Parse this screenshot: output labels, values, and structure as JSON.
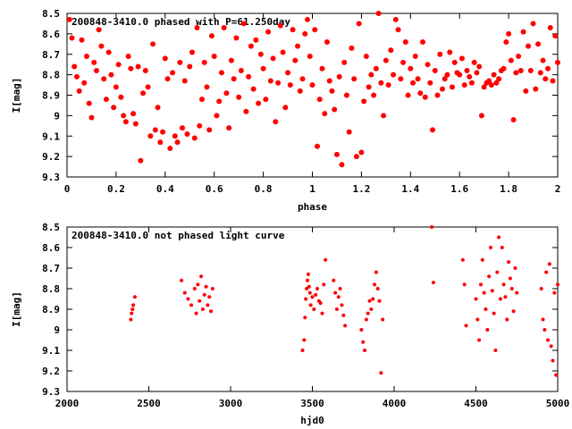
{
  "chart_data": [
    {
      "type": "scatter",
      "title": "200848-3410.0 phased with P=61.250day",
      "xlabel": "phase",
      "ylabel": "I[mag]",
      "xlim": [
        0,
        2
      ],
      "ylim": [
        9.3,
        8.5
      ],
      "y_inverted": true,
      "grid": false,
      "color": "#ff0000",
      "xticks": [
        0,
        0.2,
        0.4,
        0.6,
        0.8,
        1,
        1.2,
        1.4,
        1.6,
        1.8,
        2
      ],
      "xtick_labels": [
        "0",
        "0.2",
        "0.4",
        "0.6",
        "0.8",
        "1",
        "1.2",
        "1.4",
        "1.6",
        "1.8",
        "2"
      ],
      "yticks": [
        8.5,
        8.6,
        8.7,
        8.8,
        8.9,
        9,
        9.1,
        9.2,
        9.3
      ],
      "ytick_labels": [
        "8.5",
        "8.6",
        "8.7",
        "8.8",
        "8.9",
        "9",
        "9.1",
        "9.2",
        "9.3"
      ],
      "points": [
        [
          0.01,
          8.53
        ],
        [
          0.02,
          8.62
        ],
        [
          0.03,
          8.76
        ],
        [
          0.04,
          8.81
        ],
        [
          0.05,
          8.88
        ],
        [
          0.06,
          8.63
        ],
        [
          0.07,
          8.84
        ],
        [
          0.08,
          8.71
        ],
        [
          0.09,
          8.94
        ],
        [
          0.1,
          9.01
        ],
        [
          0.11,
          8.74
        ],
        [
          0.12,
          8.78
        ],
        [
          0.13,
          8.58
        ],
        [
          0.14,
          8.66
        ],
        [
          0.15,
          8.82
        ],
        [
          0.16,
          8.92
        ],
        [
          0.17,
          8.69
        ],
        [
          0.18,
          8.8
        ],
        [
          0.19,
          8.96
        ],
        [
          0.2,
          8.86
        ],
        [
          0.21,
          8.75
        ],
        [
          0.22,
          8.91
        ],
        [
          0.23,
          9.0
        ],
        [
          0.24,
          9.03
        ],
        [
          0.25,
          8.71
        ],
        [
          0.26,
          8.77
        ],
        [
          0.27,
          8.99
        ],
        [
          0.28,
          9.04
        ],
        [
          0.29,
          8.76
        ],
        [
          0.3,
          9.22
        ],
        [
          0.31,
          8.89
        ],
        [
          0.32,
          8.78
        ],
        [
          0.33,
          8.86
        ],
        [
          0.34,
          9.1
        ],
        [
          0.35,
          8.65
        ],
        [
          0.36,
          9.07
        ],
        [
          0.37,
          8.96
        ],
        [
          0.38,
          9.13
        ],
        [
          0.39,
          9.08
        ],
        [
          0.4,
          8.72
        ],
        [
          0.41,
          8.82
        ],
        [
          0.42,
          9.16
        ],
        [
          0.43,
          8.79
        ],
        [
          0.44,
          9.1
        ],
        [
          0.45,
          9.13
        ],
        [
          0.46,
          8.74
        ],
        [
          0.47,
          9.06
        ],
        [
          0.48,
          8.83
        ],
        [
          0.49,
          9.09
        ],
        [
          0.5,
          8.76
        ],
        [
          0.51,
          8.69
        ],
        [
          0.52,
          9.11
        ],
        [
          0.53,
          8.57
        ],
        [
          0.54,
          9.05
        ],
        [
          0.55,
          8.92
        ],
        [
          0.56,
          8.74
        ],
        [
          0.57,
          8.86
        ],
        [
          0.58,
          9.07
        ],
        [
          0.59,
          8.61
        ],
        [
          0.6,
          8.71
        ],
        [
          0.61,
          9.0
        ],
        [
          0.62,
          8.93
        ],
        [
          0.63,
          8.79
        ],
        [
          0.64,
          8.57
        ],
        [
          0.65,
          8.89
        ],
        [
          0.66,
          9.06
        ],
        [
          0.67,
          8.73
        ],
        [
          0.68,
          8.82
        ],
        [
          0.69,
          8.62
        ],
        [
          0.7,
          8.91
        ],
        [
          0.71,
          8.78
        ],
        [
          0.72,
          8.55
        ],
        [
          0.73,
          8.98
        ],
        [
          0.74,
          8.81
        ],
        [
          0.75,
          8.66
        ],
        [
          0.76,
          8.87
        ],
        [
          0.77,
          8.63
        ],
        [
          0.78,
          8.94
        ],
        [
          0.79,
          8.7
        ],
        [
          0.8,
          8.77
        ],
        [
          0.81,
          8.92
        ],
        [
          0.82,
          8.59
        ],
        [
          0.83,
          8.83
        ],
        [
          0.84,
          8.72
        ],
        [
          0.85,
          9.03
        ],
        [
          0.86,
          8.84
        ],
        [
          0.87,
          8.56
        ],
        [
          0.88,
          8.69
        ],
        [
          0.89,
          8.96
        ],
        [
          0.9,
          8.79
        ],
        [
          0.91,
          8.85
        ],
        [
          0.92,
          8.58
        ],
        [
          0.93,
          8.73
        ],
        [
          0.94,
          8.66
        ],
        [
          0.95,
          8.88
        ],
        [
          0.96,
          8.82
        ],
        [
          0.97,
          8.6
        ],
        [
          0.98,
          8.53
        ],
        [
          0.99,
          8.71
        ],
        [
          1.0,
          8.85
        ],
        [
          1.01,
          8.58
        ],
        [
          1.02,
          9.15
        ],
        [
          1.03,
          8.92
        ],
        [
          1.04,
          8.77
        ],
        [
          1.05,
          8.99
        ],
        [
          1.06,
          8.64
        ],
        [
          1.07,
          8.83
        ],
        [
          1.08,
          8.88
        ],
        [
          1.09,
          8.97
        ],
        [
          1.1,
          9.19
        ],
        [
          1.11,
          8.81
        ],
        [
          1.12,
          9.24
        ],
        [
          1.13,
          8.74
        ],
        [
          1.14,
          8.9
        ],
        [
          1.15,
          9.08
        ],
        [
          1.16,
          8.67
        ],
        [
          1.17,
          8.82
        ],
        [
          1.18,
          9.2
        ],
        [
          1.19,
          8.55
        ],
        [
          1.2,
          9.18
        ],
        [
          1.21,
          8.93
        ],
        [
          1.22,
          8.71
        ],
        [
          1.23,
          8.86
        ],
        [
          1.24,
          8.8
        ],
        [
          1.25,
          8.9
        ],
        [
          1.26,
          8.77
        ],
        [
          1.27,
          8.5
        ],
        [
          1.28,
          8.84
        ],
        [
          1.29,
          9.0
        ],
        [
          1.3,
          8.73
        ],
        [
          1.31,
          8.85
        ],
        [
          1.32,
          8.68
        ],
        [
          1.33,
          8.8
        ],
        [
          1.34,
          8.53
        ],
        [
          1.35,
          8.58
        ],
        [
          1.36,
          8.82
        ],
        [
          1.37,
          8.74
        ],
        [
          1.38,
          8.64
        ],
        [
          1.39,
          8.9
        ],
        [
          1.4,
          8.77
        ],
        [
          1.41,
          8.84
        ],
        [
          1.42,
          8.71
        ],
        [
          1.43,
          8.82
        ],
        [
          1.44,
          8.89
        ],
        [
          1.45,
          8.64
        ],
        [
          1.46,
          8.91
        ],
        [
          1.47,
          8.75
        ],
        [
          1.48,
          8.84
        ],
        [
          1.49,
          9.07
        ],
        [
          1.5,
          8.78
        ],
        [
          1.51,
          8.9
        ],
        [
          1.52,
          8.7
        ],
        [
          1.53,
          8.87
        ],
        [
          1.54,
          8.82
        ],
        [
          1.55,
          8.8
        ],
        [
          1.56,
          8.69
        ],
        [
          1.57,
          8.86
        ],
        [
          1.58,
          8.74
        ],
        [
          1.59,
          8.79
        ],
        [
          1.6,
          8.8
        ],
        [
          1.61,
          8.72
        ],
        [
          1.62,
          8.85
        ],
        [
          1.63,
          8.78
        ],
        [
          1.64,
          8.81
        ],
        [
          1.65,
          8.84
        ],
        [
          1.66,
          8.74
        ],
        [
          1.67,
          8.79
        ],
        [
          1.68,
          8.76
        ],
        [
          1.69,
          9.0
        ],
        [
          1.7,
          8.86
        ],
        [
          1.71,
          8.84
        ],
        [
          1.72,
          8.83
        ],
        [
          1.73,
          8.85
        ],
        [
          1.74,
          8.8
        ],
        [
          1.75,
          8.84
        ],
        [
          1.76,
          8.82
        ],
        [
          1.77,
          8.78
        ],
        [
          1.78,
          8.77
        ],
        [
          1.79,
          8.64
        ],
        [
          1.8,
          8.6
        ],
        [
          1.81,
          8.73
        ],
        [
          1.82,
          9.02
        ],
        [
          1.83,
          8.79
        ],
        [
          1.84,
          8.71
        ],
        [
          1.85,
          8.78
        ],
        [
          1.86,
          8.59
        ],
        [
          1.87,
          8.88
        ],
        [
          1.88,
          8.66
        ],
        [
          1.89,
          8.78
        ],
        [
          1.9,
          8.55
        ],
        [
          1.91,
          8.87
        ],
        [
          1.92,
          8.65
        ],
        [
          1.93,
          8.79
        ],
        [
          1.94,
          8.73
        ],
        [
          1.95,
          8.82
        ],
        [
          1.96,
          8.77
        ],
        [
          1.97,
          8.57
        ],
        [
          1.98,
          8.83
        ],
        [
          1.99,
          8.61
        ],
        [
          2.0,
          8.74
        ]
      ]
    },
    {
      "type": "scatter",
      "title": "200848-3410.0 not phased light curve",
      "xlabel": "hjd0",
      "ylabel": "I[mag]",
      "xlim": [
        2000,
        5000
      ],
      "ylim": [
        9.3,
        8.5
      ],
      "y_inverted": true,
      "grid": false,
      "color": "#ff0000",
      "xticks": [
        2000,
        2500,
        3000,
        3500,
        4000,
        4500,
        5000
      ],
      "xtick_labels": [
        "2000",
        "2500",
        "3000",
        "3500",
        "4000",
        "4500",
        "5000"
      ],
      "yticks": [
        8.5,
        8.6,
        8.7,
        8.8,
        8.9,
        9,
        9.1,
        9.2,
        9.3
      ],
      "ytick_labels": [
        "8.5",
        "8.6",
        "8.7",
        "8.8",
        "8.9",
        "9",
        "9.1",
        "9.2",
        "9.3"
      ],
      "points": [
        [
          2390,
          8.95
        ],
        [
          2395,
          8.92
        ],
        [
          2400,
          8.9
        ],
        [
          2405,
          8.88
        ],
        [
          2415,
          8.84
        ],
        [
          2700,
          8.76
        ],
        [
          2720,
          8.82
        ],
        [
          2740,
          8.85
        ],
        [
          2760,
          8.88
        ],
        [
          2780,
          8.8
        ],
        [
          2790,
          8.92
        ],
        [
          2800,
          8.78
        ],
        [
          2810,
          8.86
        ],
        [
          2820,
          8.74
        ],
        [
          2830,
          8.9
        ],
        [
          2840,
          8.83
        ],
        [
          2850,
          8.79
        ],
        [
          2860,
          8.88
        ],
        [
          2870,
          8.84
        ],
        [
          2880,
          8.91
        ],
        [
          2890,
          8.8
        ],
        [
          3440,
          9.1
        ],
        [
          3450,
          9.05
        ],
        [
          3455,
          8.94
        ],
        [
          3460,
          8.85
        ],
        [
          3465,
          8.8
        ],
        [
          3470,
          8.76
        ],
        [
          3475,
          8.73
        ],
        [
          3480,
          8.79
        ],
        [
          3485,
          8.82
        ],
        [
          3490,
          8.88
        ],
        [
          3500,
          8.84
        ],
        [
          3510,
          8.9
        ],
        [
          3520,
          8.83
        ],
        [
          3530,
          8.8
        ],
        [
          3540,
          8.86
        ],
        [
          3550,
          8.87
        ],
        [
          3560,
          8.92
        ],
        [
          3570,
          8.78
        ],
        [
          3580,
          8.66
        ],
        [
          3630,
          8.76
        ],
        [
          3640,
          8.82
        ],
        [
          3650,
          8.9
        ],
        [
          3660,
          8.84
        ],
        [
          3670,
          8.8
        ],
        [
          3680,
          8.88
        ],
        [
          3690,
          8.93
        ],
        [
          3700,
          8.98
        ],
        [
          3800,
          9.0
        ],
        [
          3810,
          9.06
        ],
        [
          3820,
          9.1
        ],
        [
          3830,
          8.95
        ],
        [
          3840,
          8.92
        ],
        [
          3850,
          8.86
        ],
        [
          3860,
          8.9
        ],
        [
          3870,
          8.85
        ],
        [
          3880,
          8.78
        ],
        [
          3890,
          8.72
        ],
        [
          3900,
          8.8
        ],
        [
          3910,
          8.86
        ],
        [
          3920,
          9.21
        ],
        [
          3930,
          8.95
        ],
        [
          4230,
          8.5
        ],
        [
          4240,
          8.77
        ],
        [
          4420,
          8.66
        ],
        [
          4430,
          8.78
        ],
        [
          4440,
          8.98
        ],
        [
          4500,
          8.85
        ],
        [
          4510,
          8.95
        ],
        [
          4520,
          9.05
        ],
        [
          4530,
          8.78
        ],
        [
          4540,
          8.66
        ],
        [
          4550,
          8.82
        ],
        [
          4560,
          8.9
        ],
        [
          4570,
          9.0
        ],
        [
          4580,
          8.74
        ],
        [
          4590,
          8.6
        ],
        [
          4600,
          8.81
        ],
        [
          4610,
          8.92
        ],
        [
          4620,
          9.1
        ],
        [
          4630,
          8.72
        ],
        [
          4640,
          8.55
        ],
        [
          4650,
          8.85
        ],
        [
          4660,
          8.6
        ],
        [
          4670,
          8.78
        ],
        [
          4680,
          8.84
        ],
        [
          4690,
          8.95
        ],
        [
          4700,
          8.67
        ],
        [
          4710,
          8.75
        ],
        [
          4720,
          8.8
        ],
        [
          4730,
          8.91
        ],
        [
          4740,
          8.7
        ],
        [
          4750,
          8.82
        ],
        [
          4900,
          8.8
        ],
        [
          4910,
          8.95
        ],
        [
          4920,
          9.0
        ],
        [
          4930,
          8.72
        ],
        [
          4940,
          9.05
        ],
        [
          4950,
          8.68
        ],
        [
          4960,
          9.08
        ],
        [
          4970,
          9.15
        ],
        [
          4980,
          8.82
        ],
        [
          4990,
          9.22
        ],
        [
          5000,
          8.78
        ]
      ]
    }
  ]
}
